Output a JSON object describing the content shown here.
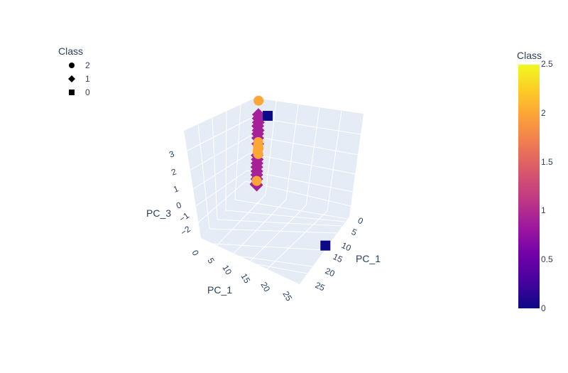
{
  "chart_data": {
    "type": "scatter3d",
    "axes": {
      "x": {
        "title": "PC_1",
        "ticks": [
          "0",
          "5",
          "10",
          "15",
          "20",
          "25"
        ]
      },
      "y": {
        "title": "PC_1",
        "ticks": [
          "0",
          "5",
          "10",
          "15",
          "20",
          "25"
        ]
      },
      "z": {
        "title": "PC_3",
        "ticks": [
          "−2",
          "−1",
          "0",
          "1",
          "2",
          "3"
        ]
      }
    },
    "legend": {
      "title": "Class",
      "placement": "top-left",
      "items": [
        {
          "label": "2",
          "symbol": "circle"
        },
        {
          "label": "1",
          "symbol": "diamond"
        },
        {
          "label": "0",
          "symbol": "square"
        }
      ]
    },
    "colorbar": {
      "title": "Class",
      "range": [
        0,
        2.5
      ],
      "ticks": [
        "0",
        "0.5",
        "1",
        "1.5",
        "2",
        "2.5"
      ],
      "colors": [
        "#0d0887",
        "#46039f",
        "#7201a8",
        "#9c179e",
        "#bd3786",
        "#d8576b",
        "#ed7953",
        "#fb9f3a",
        "#fdca26",
        "#f0f921"
      ]
    },
    "series": [
      {
        "class": "2",
        "symbol": "circle",
        "color": "#fca636",
        "points": [
          {
            "x": 0.2,
            "y": 0.5,
            "z": 3.3
          },
          {
            "x": 0.4,
            "y": 0.9,
            "z": 1.2
          },
          {
            "x": 0.4,
            "y": 0.9,
            "z": 1.0
          },
          {
            "x": 0.5,
            "y": 1.0,
            "z": 0.9
          },
          {
            "x": 0.4,
            "y": 0.9,
            "z": 0.8
          },
          {
            "x": 0.5,
            "y": 1.0,
            "z": 0.6
          },
          {
            "x": 0.4,
            "y": 0.9,
            "z": 0.7
          },
          {
            "x": 0.5,
            "y": 1.0,
            "z": -0.8
          }
        ]
      },
      {
        "class": "1",
        "symbol": "diamond",
        "color": "#a62098",
        "points": [
          {
            "x": 0.3,
            "y": 0.6,
            "z": 2.6
          },
          {
            "x": 0.3,
            "y": 0.6,
            "z": 2.4
          },
          {
            "x": 0.3,
            "y": 0.7,
            "z": 2.2
          },
          {
            "x": 0.3,
            "y": 0.6,
            "z": 2.0
          },
          {
            "x": 0.4,
            "y": 0.7,
            "z": 1.8
          },
          {
            "x": 0.3,
            "y": 0.7,
            "z": 1.6
          },
          {
            "x": 0.4,
            "y": 0.7,
            "z": 1.4
          },
          {
            "x": 0.4,
            "y": 0.8,
            "z": 1.1
          },
          {
            "x": 0.4,
            "y": 0.8,
            "z": 0.5
          },
          {
            "x": 0.4,
            "y": 0.9,
            "z": 0.3
          },
          {
            "x": 0.4,
            "y": 0.9,
            "z": 0.1
          },
          {
            "x": 0.4,
            "y": 0.9,
            "z": -0.1
          },
          {
            "x": 0.5,
            "y": 0.9,
            "z": -0.3
          },
          {
            "x": 0.4,
            "y": 1.0,
            "z": -0.5
          },
          {
            "x": 0.5,
            "y": 1.0,
            "z": -0.7
          },
          {
            "x": 0.6,
            "y": 1.0,
            "z": -1.0
          },
          {
            "x": 0.3,
            "y": 1.0,
            "z": -1.0
          }
        ]
      },
      {
        "class": "0",
        "symbol": "square",
        "color": "#0d0887",
        "points": [
          {
            "x": 0.2,
            "y": 3.2,
            "z": 2.7
          },
          {
            "x": 17.5,
            "y": 9.0,
            "z": -0.9
          }
        ]
      }
    ]
  }
}
